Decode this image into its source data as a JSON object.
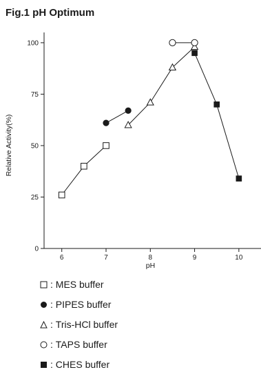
{
  "chart_data": {
    "type": "line",
    "title": "Fig.1 pH Optimum",
    "xlabel": "pH",
    "ylabel": "Relative Activity(%)",
    "xlim": [
      5.6,
      10.5
    ],
    "ylim": [
      0,
      105
    ],
    "xticks": [
      6,
      7,
      8,
      9,
      10
    ],
    "yticks": [
      0,
      25,
      50,
      75,
      100
    ],
    "grid": false,
    "legend_position": "bottom",
    "series": [
      {
        "name": "MES buffer",
        "marker": "open-square",
        "x": [
          6,
          6.5,
          7
        ],
        "y": [
          26,
          40,
          50
        ]
      },
      {
        "name": "PIPES buffer",
        "marker": "filled-circle",
        "x": [
          7,
          7.5
        ],
        "y": [
          61,
          67
        ]
      },
      {
        "name": "Tris-HCl buffer",
        "marker": "open-triangle",
        "x": [
          7.5,
          8,
          8.5,
          9
        ],
        "y": [
          60,
          71,
          88,
          98
        ]
      },
      {
        "name": "TAPS buffer",
        "marker": "open-circle",
        "x": [
          8.5,
          9
        ],
        "y": [
          100,
          100
        ]
      },
      {
        "name": "CHES buffer",
        "marker": "filled-square",
        "x": [
          9,
          9.5,
          10
        ],
        "y": [
          95,
          70,
          34
        ]
      }
    ]
  },
  "legend": {
    "separator": ":",
    "items": [
      "MES buffer",
      "PIPES buffer",
      "Tris-HCl buffer",
      "TAPS buffer",
      "CHES buffer"
    ]
  }
}
